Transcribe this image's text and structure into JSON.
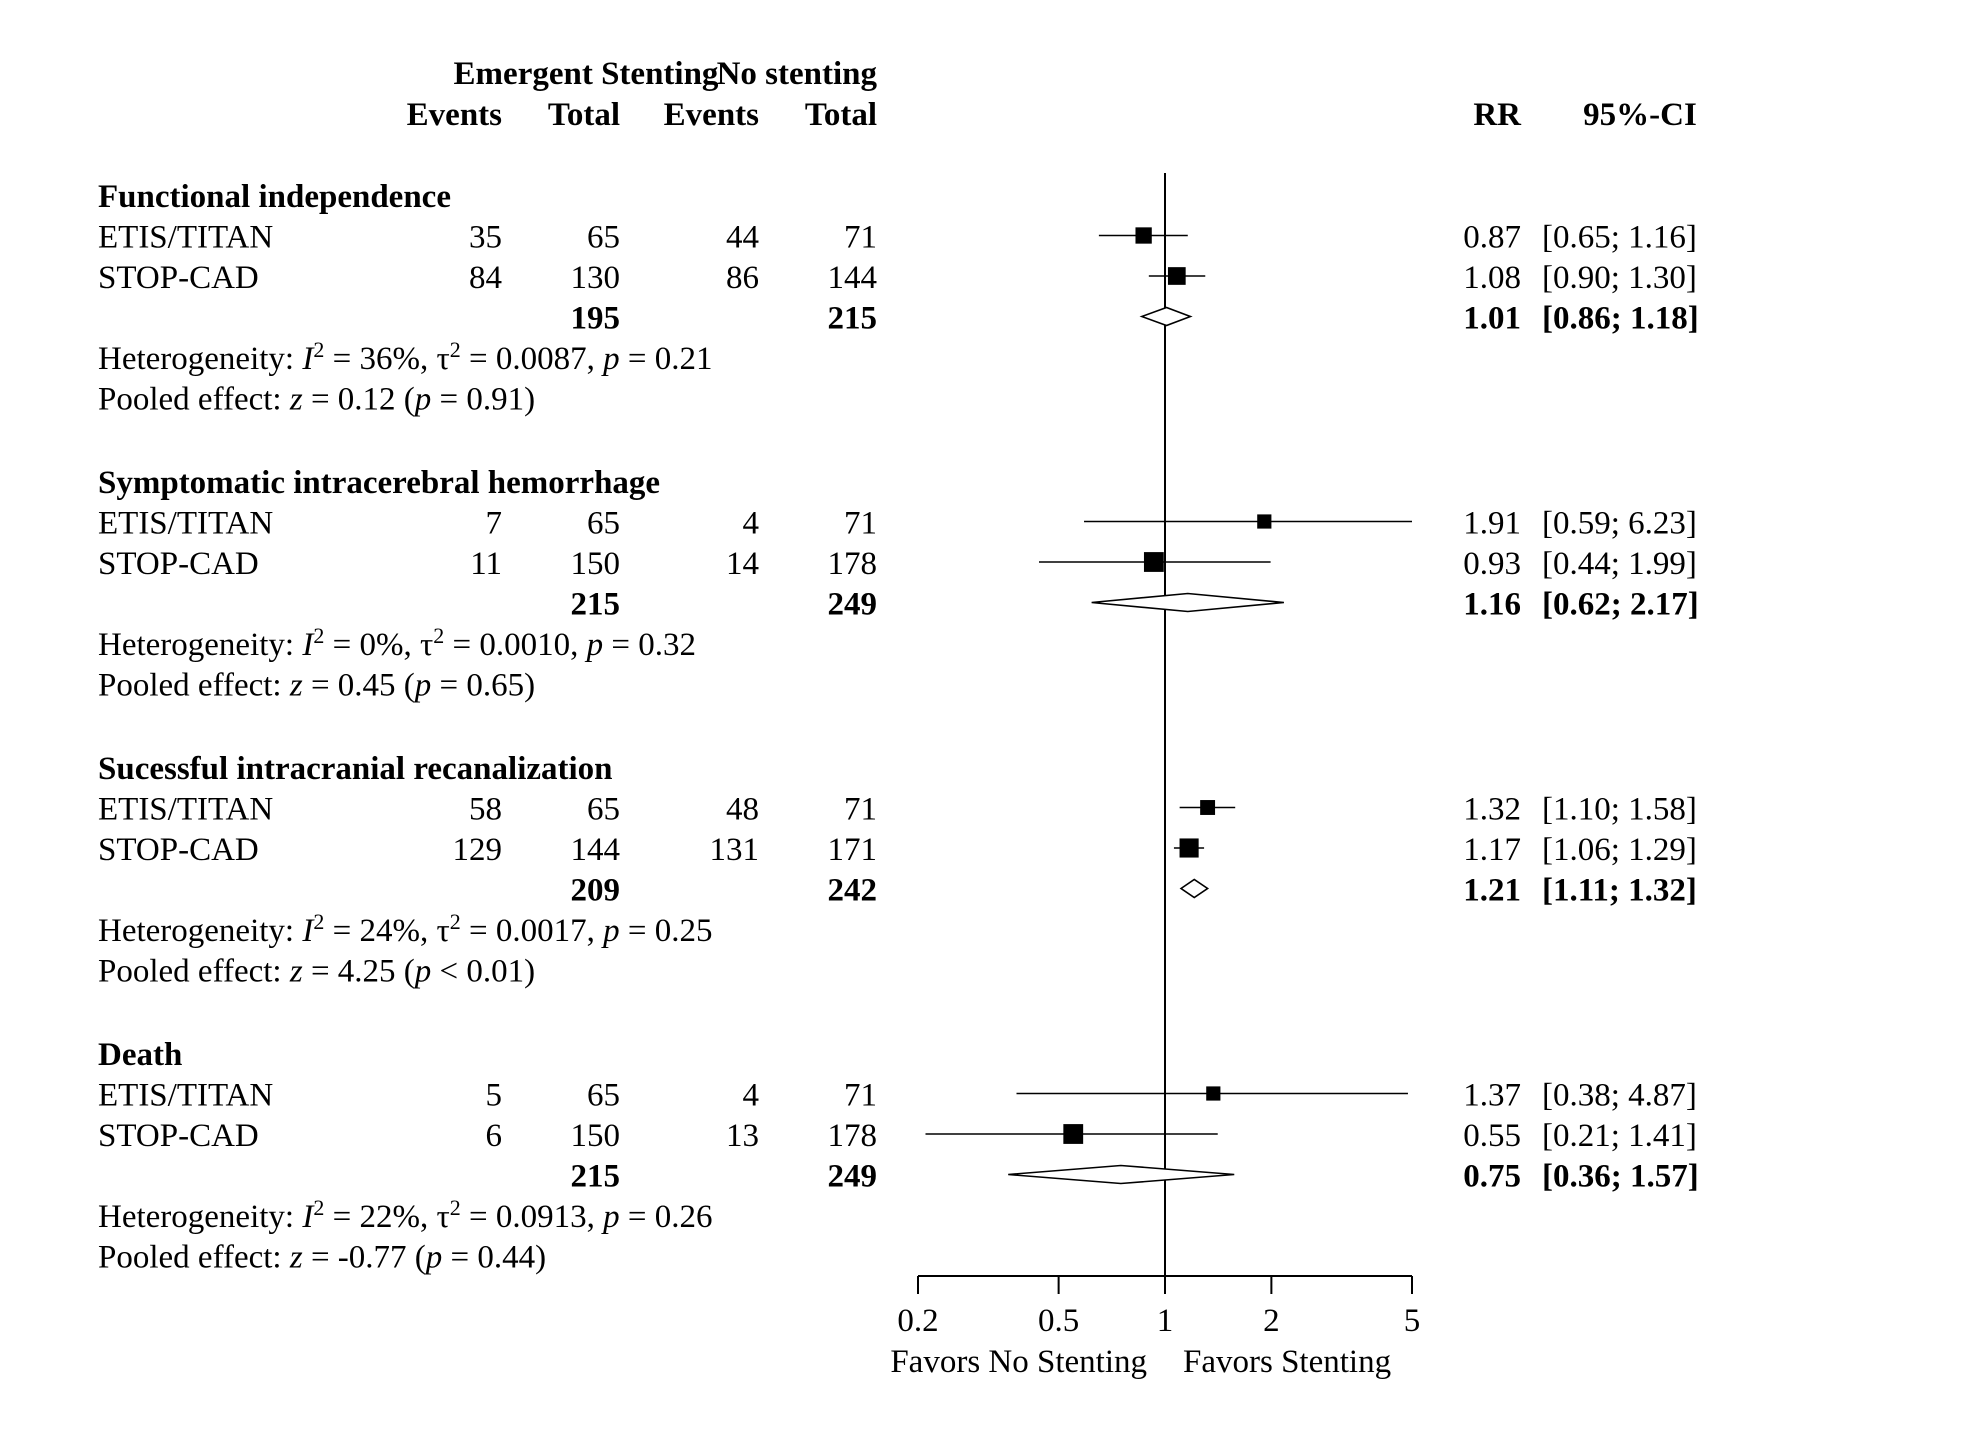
{
  "chart_data": {
    "type": "forest",
    "measure": "RR",
    "x_scale": "log",
    "xlim": [
      0.2,
      5
    ],
    "x_ticks": [
      "0.2",
      "0.5",
      "1",
      "2",
      "5"
    ],
    "reference_line": 1,
    "labels": {
      "favors_left": "Favors No Stenting",
      "favors_right": "Favors Stenting"
    },
    "header": {
      "group1": "Emergent Stenting",
      "group2": "No stenting",
      "events": "Events",
      "total": "Total",
      "rr": "RR",
      "ci": "95%-CI"
    },
    "groups": [
      {
        "title": "Functional independence",
        "studies": [
          {
            "name": "ETIS/TITAN",
            "e_events": "35",
            "e_total": "65",
            "c_events": "44",
            "c_total": "71",
            "rr": 0.87,
            "lower": 0.65,
            "upper": 1.16,
            "rr_text": "0.87",
            "ci_text": "[0.65; 1.16]",
            "weight": 0.45
          },
          {
            "name": "STOP-CAD",
            "e_events": "84",
            "e_total": "130",
            "c_events": "86",
            "c_total": "144",
            "rr": 1.08,
            "lower": 0.9,
            "upper": 1.3,
            "rr_text": "1.08",
            "ci_text": "[0.90; 1.30]",
            "weight": 0.55
          }
        ],
        "pooled": {
          "e_total": "195",
          "c_total": "215",
          "rr": 1.01,
          "lower": 0.86,
          "upper": 1.18,
          "rr_text": "1.01",
          "ci_text": "[0.86; 1.18]"
        },
        "heterogeneity": {
          "prefix": "Heterogeneity: ",
          "I2": "36%",
          "tau2": "0.0087",
          "p": "0.21"
        },
        "pooled_effect": {
          "prefix": "Pooled effect: ",
          "z": "0.12",
          "p_op": "=",
          "p": "0.91"
        }
      },
      {
        "title": "Symptomatic intracerebral hemorrhage",
        "studies": [
          {
            "name": "ETIS/TITAN",
            "e_events": "7",
            "e_total": "65",
            "c_events": "4",
            "c_total": "71",
            "rr": 1.91,
            "lower": 0.59,
            "upper": 6.23,
            "rr_text": "1.91",
            "ci_text": "[0.59; 6.23]",
            "weight": 0.3
          },
          {
            "name": "STOP-CAD",
            "e_events": "11",
            "e_total": "150",
            "c_events": "14",
            "c_total": "178",
            "rr": 0.93,
            "lower": 0.44,
            "upper": 1.99,
            "rr_text": "0.93",
            "ci_text": "[0.44; 1.99]",
            "weight": 0.7
          }
        ],
        "pooled": {
          "e_total": "215",
          "c_total": "249",
          "rr": 1.16,
          "lower": 0.62,
          "upper": 2.17,
          "rr_text": "1.16",
          "ci_text": "[0.62; 2.17]"
        },
        "heterogeneity": {
          "prefix": "Heterogeneity: ",
          "I2": "0%",
          "tau2": "0.0010",
          "p": "0.32"
        },
        "pooled_effect": {
          "prefix": "Pooled effect: ",
          "z": "0.45",
          "p_op": "=",
          "p": "0.65"
        }
      },
      {
        "title": "Sucessful intracranial recanalization",
        "studies": [
          {
            "name": "ETIS/TITAN",
            "e_events": "58",
            "e_total": "65",
            "c_events": "48",
            "c_total": "71",
            "rr": 1.32,
            "lower": 1.1,
            "upper": 1.58,
            "rr_text": "1.32",
            "ci_text": "[1.10; 1.58]",
            "weight": 0.35
          },
          {
            "name": "STOP-CAD",
            "e_events": "129",
            "e_total": "144",
            "c_events": "131",
            "c_total": "171",
            "rr": 1.17,
            "lower": 1.06,
            "upper": 1.29,
            "rr_text": "1.17",
            "ci_text": "[1.06; 1.29]",
            "weight": 0.65
          }
        ],
        "pooled": {
          "e_total": "209",
          "c_total": "242",
          "rr": 1.21,
          "lower": 1.11,
          "upper": 1.32,
          "rr_text": "1.21",
          "ci_text": "[1.11; 1.32]"
        },
        "heterogeneity": {
          "prefix": "Heterogeneity: ",
          "I2": "24%",
          "tau2": "0.0017",
          "p": "0.25"
        },
        "pooled_effect": {
          "prefix": "Pooled effect: ",
          "z": "4.25",
          "p_op": "<",
          "p": "0.01"
        }
      },
      {
        "title": "Death",
        "studies": [
          {
            "name": "ETIS/TITAN",
            "e_events": "5",
            "e_total": "65",
            "c_events": "4",
            "c_total": "71",
            "rr": 1.37,
            "lower": 0.38,
            "upper": 4.87,
            "rr_text": "1.37",
            "ci_text": "[0.38; 4.87]",
            "weight": 0.3
          },
          {
            "name": "STOP-CAD",
            "e_events": "6",
            "e_total": "150",
            "c_events": "13",
            "c_total": "178",
            "rr": 0.55,
            "lower": 0.21,
            "upper": 1.41,
            "rr_text": "0.55",
            "ci_text": "[0.21; 1.41]",
            "weight": 0.7
          }
        ],
        "pooled": {
          "e_total": "215",
          "c_total": "249",
          "rr": 0.75,
          "lower": 0.36,
          "upper": 1.57,
          "rr_text": "0.75",
          "ci_text": "[0.36; 1.57]"
        },
        "heterogeneity": {
          "prefix": "Heterogeneity: ",
          "I2": "22%",
          "tau2": "0.0913",
          "p": "0.26"
        },
        "pooled_effect": {
          "prefix": "Pooled effect: ",
          "z": "-0.77",
          "p_op": "=",
          "p": "0.44"
        }
      }
    ]
  }
}
